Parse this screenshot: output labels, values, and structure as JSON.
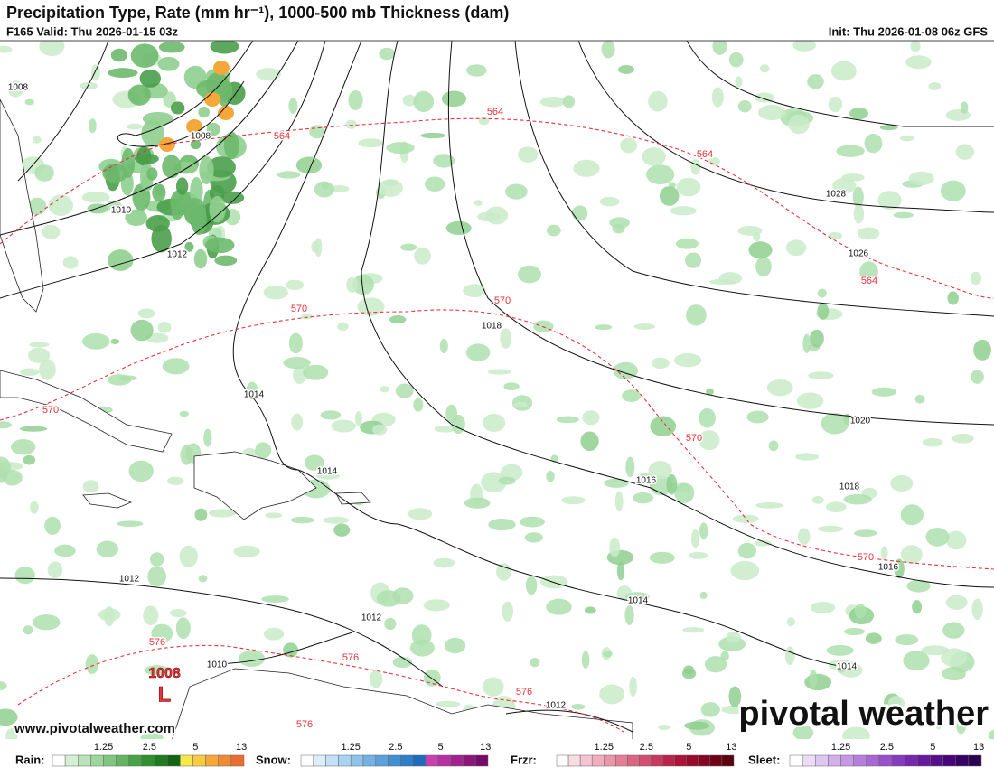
{
  "header": {
    "title": "Precipitation Type, Rate (mm hr⁻¹), 1000-500 mb Thickness (dam)",
    "valid": "F165 Valid: Thu 2026-01-15 03z",
    "init": "Init: Thu 2026-01-08 06z GFS"
  },
  "map": {
    "isobar_labels": [
      "1008",
      "1008",
      "1010",
      "1012",
      "1014",
      "1014",
      "1018",
      "1028",
      "1026",
      "1020",
      "1016",
      "1018",
      "1016",
      "1014",
      "1012",
      "1012",
      "1010",
      "1014",
      "1012"
    ],
    "thickness_labels": [
      "564",
      "564",
      "564",
      "564",
      "570",
      "570",
      "570",
      "570",
      "570",
      "576",
      "576",
      "576",
      "576"
    ],
    "low": {
      "pressure": "1008",
      "symbol": "L"
    }
  },
  "watermark": {
    "url": "www.pivotalweather.com",
    "brand": "pivotal weather"
  },
  "legend": [
    {
      "name": "Rain:",
      "ticks": [
        "1.25",
        "2.5",
        "5",
        "13"
      ],
      "colors": [
        "#ffffff",
        "#d4f0d4",
        "#b8e4b8",
        "#9dd69d",
        "#80c680",
        "#63b563",
        "#48a248",
        "#318f31",
        "#1f7b1f",
        "#126612",
        "#f5e94a",
        "#f7cd3f",
        "#f4a83a",
        "#f08b34",
        "#ea6e2f"
      ]
    },
    {
      "name": "Snow:",
      "ticks": [
        "1.25",
        "2.5",
        "5",
        "13"
      ],
      "colors": [
        "#ffffff",
        "#dceefa",
        "#c3e1f6",
        "#a9d3f1",
        "#8fc3ec",
        "#74b2e5",
        "#5aa1dd",
        "#4190d4",
        "#2e7ec9",
        "#1f6bbd",
        "#cc3fb0",
        "#b830a0",
        "#a3228f",
        "#8d167d",
        "#770b6b"
      ]
    },
    {
      "name": "Frzr:",
      "ticks": [
        "1.25",
        "2.5",
        "5",
        "13"
      ],
      "colors": [
        "#ffffff",
        "#f9dbe2",
        "#f5c4d0",
        "#f0adbd",
        "#eb95aa",
        "#e57d97",
        "#dd6584",
        "#d44e70",
        "#c9385d",
        "#bc234a",
        "#ab1438",
        "#980c2b",
        "#830720",
        "#6e0316",
        "#5a000e"
      ]
    },
    {
      "name": "Sleet:",
      "ticks": [
        "1.25",
        "2.5",
        "5",
        "13"
      ],
      "colors": [
        "#ffffff",
        "#eddcf7",
        "#e0c6f2",
        "#d3afec",
        "#c597e5",
        "#b67fdd",
        "#a767d4",
        "#9751c9",
        "#873cbd",
        "#7729ae",
        "#67199d",
        "#570e8a",
        "#470677",
        "#380263",
        "#2a0050"
      ]
    }
  ]
}
